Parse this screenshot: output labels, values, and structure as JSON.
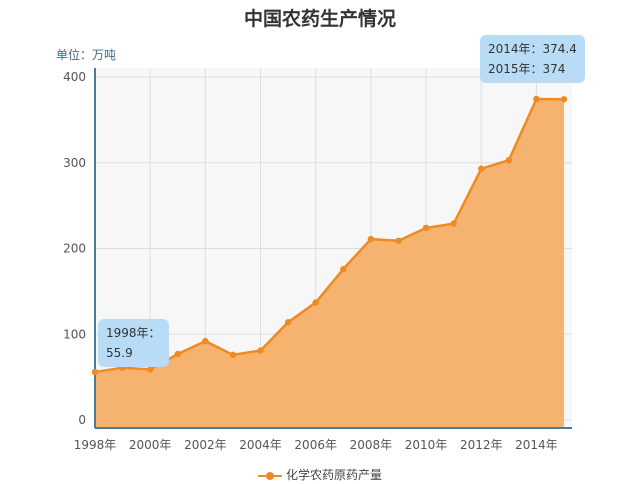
{
  "title": "中国农药生产情况",
  "unit_label": "单位：万吨",
  "colors": {
    "line": "#ee8a24",
    "area": "#f6b36f",
    "callout_bg": "#b9dcf6",
    "grid": "#dddddd"
  },
  "callouts": {
    "c1998": {
      "line1": "1998年：",
      "line2": "55.9"
    },
    "c2014": {
      "line1": "2014年：374.4",
      "line2": "2015年：374"
    }
  },
  "chart_data": {
    "type": "area",
    "title": "中国农药生产情况",
    "ylabel": "单位：万吨",
    "ylim": [
      0,
      400
    ],
    "yticks": [
      "0",
      "100",
      "200",
      "300",
      "400"
    ],
    "x": [
      1998,
      1999,
      2000,
      2001,
      2002,
      2003,
      2004,
      2005,
      2006,
      2007,
      2008,
      2009,
      2010,
      2011,
      2012,
      2013,
      2014,
      2015
    ],
    "xtick_labels": [
      "1998年",
      "2000年",
      "2002年",
      "2004年",
      "2006年",
      "2008年",
      "2010年",
      "2012年",
      "2014年"
    ],
    "series": [
      {
        "name": "化学农药原药产量",
        "values": [
          55.9,
          61,
          59,
          77,
          92,
          76,
          81,
          114,
          137,
          176,
          211,
          209,
          224,
          229,
          293,
          303,
          374.4,
          374
        ]
      }
    ],
    "grid": true,
    "legend": "bottom"
  }
}
